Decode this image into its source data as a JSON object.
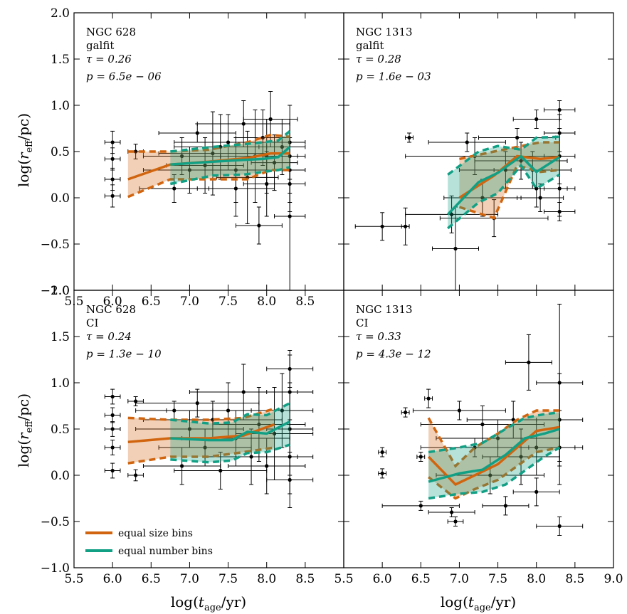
{
  "colors": {
    "size_bins": "#d1650f",
    "number_bins": "#12a085"
  },
  "legend": {
    "size_bins": "equal size bins",
    "number_bins": "equal number bins"
  },
  "axes": {
    "xlabel_parts": [
      "log(",
      "t",
      "age",
      "/yr)"
    ],
    "ylabel_parts": [
      "log(",
      "r",
      "eff",
      "/pc)"
    ]
  },
  "chart_data": [
    {
      "type": "line",
      "galaxy": "NGC 628",
      "method": "galfit",
      "tau": "τ = 0.26",
      "p": "p = 6.5e − 06",
      "xlim": [
        5.5,
        9.0
      ],
      "ylim": [
        -1.0,
        2.0
      ],
      "xticks": [
        "5.5",
        "6.0",
        "6.5",
        "7.0",
        "7.5",
        "8.0",
        "8.5"
      ],
      "yticks": [
        "−1.0",
        "−0.5",
        "0.0",
        "0.5",
        "1.0",
        "1.5",
        "2.0"
      ],
      "series": [
        {
          "name": "equal size bins",
          "x": [
            6.2,
            6.75,
            7.25,
            7.75,
            8.05,
            8.3
          ],
          "y": [
            0.2,
            0.36,
            0.39,
            0.43,
            0.48,
            0.48
          ],
          "lo": [
            0.01,
            0.2,
            0.2,
            0.2,
            0.3,
            0.3
          ],
          "hi": [
            0.5,
            0.5,
            0.52,
            0.6,
            0.68,
            0.66
          ]
        },
        {
          "name": "equal number bins",
          "x": [
            6.75,
            7.3,
            7.7,
            7.95,
            8.15,
            8.3
          ],
          "y": [
            0.36,
            0.39,
            0.41,
            0.42,
            0.44,
            0.55
          ],
          "lo": [
            0.15,
            0.24,
            0.25,
            0.28,
            0.3,
            0.33
          ],
          "hi": [
            0.5,
            0.55,
            0.58,
            0.6,
            0.62,
            0.72
          ]
        }
      ],
      "points": [
        [
          6.0,
          0.6,
          0.1,
          0.12
        ],
        [
          6.0,
          0.42,
          0.1,
          0.12
        ],
        [
          6.0,
          0.2,
          0.1,
          0.12
        ],
        [
          6.0,
          0.02,
          0.1,
          0.12
        ],
        [
          6.3,
          0.5,
          0.1,
          0.08
        ],
        [
          6.8,
          0.1,
          0.45,
          0.15
        ],
        [
          6.9,
          0.45,
          0.5,
          0.2
        ],
        [
          7.0,
          0.3,
          0.6,
          0.25
        ],
        [
          7.1,
          0.7,
          0.5,
          0.1
        ],
        [
          7.2,
          0.35,
          0.5,
          0.3
        ],
        [
          7.3,
          0.48,
          0.7,
          0.45
        ],
        [
          7.4,
          0.55,
          0.6,
          0.35
        ],
        [
          7.5,
          0.6,
          0.7,
          0.3
        ],
        [
          7.6,
          0.3,
          0.6,
          0.35
        ],
        [
          7.6,
          0.1,
          0.5,
          0.3
        ],
        [
          7.7,
          0.8,
          0.6,
          0.25
        ],
        [
          7.75,
          0.22,
          0.4,
          0.5
        ],
        [
          7.85,
          0.45,
          0.45,
          0.5
        ],
        [
          7.9,
          -0.3,
          0.3,
          0.2
        ],
        [
          7.95,
          0.65,
          0.35,
          0.3
        ],
        [
          8.0,
          0.15,
          0.3,
          0.35
        ],
        [
          8.0,
          0.45,
          0.4,
          0.4
        ],
        [
          8.05,
          0.85,
          0.35,
          0.3
        ],
        [
          8.1,
          0.38,
          0.3,
          0.3
        ],
        [
          8.2,
          0.55,
          0.3,
          0.3
        ],
        [
          8.3,
          0.3,
          0.2,
          0.35
        ],
        [
          8.3,
          0.45,
          0.2,
          0.4
        ],
        [
          8.3,
          0.6,
          0.2,
          0.4
        ],
        [
          8.3,
          0.15,
          0.2,
          0.3
        ],
        [
          8.3,
          -0.2,
          0.2,
          0.8
        ]
      ]
    },
    {
      "type": "line",
      "galaxy": "NGC 1313",
      "method": "galfit",
      "tau": "τ = 0.28",
      "p": "p = 1.6e − 03",
      "xlim": [
        5.5,
        9.0
      ],
      "ylim": [
        -1.0,
        2.0
      ],
      "xticks": [],
      "yticks": [],
      "series": [
        {
          "name": "equal size bins",
          "x": [
            7.0,
            7.45,
            7.75,
            8.05,
            8.3
          ],
          "y": [
            0.0,
            0.24,
            0.45,
            0.42,
            0.44
          ],
          "lo": [
            -0.1,
            -0.22,
            0.35,
            0.28,
            0.3
          ],
          "hi": [
            0.42,
            0.5,
            0.55,
            0.6,
            0.6
          ]
        },
        {
          "name": "equal number bins",
          "x": [
            6.85,
            7.25,
            7.5,
            7.8,
            8.0,
            8.3
          ],
          "y": [
            -0.18,
            0.17,
            0.27,
            0.45,
            0.28,
            0.44
          ],
          "lo": [
            -0.33,
            -0.05,
            0.05,
            0.35,
            0.1,
            0.25
          ],
          "hi": [
            0.25,
            0.5,
            0.56,
            0.52,
            0.65,
            0.66
          ]
        }
      ],
      "points": [
        [
          6.0,
          -0.31,
          0.35,
          0.15
        ],
        [
          6.3,
          -0.31,
          0.05,
          0.2
        ],
        [
          6.35,
          0.65,
          0.05,
          0.05
        ],
        [
          6.9,
          -0.18,
          0.6,
          0.2
        ],
        [
          6.95,
          -0.55,
          0.3,
          0.45
        ],
        [
          7.1,
          0.6,
          0.5,
          0.1
        ],
        [
          7.2,
          0.45,
          0.9,
          0.2
        ],
        [
          7.3,
          0.0,
          0.5,
          0.2
        ],
        [
          7.45,
          -0.22,
          0.7,
          0.2
        ],
        [
          7.6,
          0.3,
          0.6,
          0.2
        ],
        [
          7.75,
          0.65,
          0.5,
          0.1
        ],
        [
          7.8,
          0.4,
          0.6,
          0.2
        ],
        [
          7.95,
          0.3,
          0.5,
          0.2
        ],
        [
          8.0,
          0.1,
          0.4,
          0.2
        ],
        [
          8.0,
          0.85,
          0.3,
          0.1
        ],
        [
          8.05,
          0.0,
          0.3,
          0.15
        ],
        [
          8.3,
          0.95,
          0.2,
          0.1
        ],
        [
          8.3,
          0.7,
          0.2,
          0.2
        ],
        [
          8.3,
          0.45,
          0.2,
          0.3
        ],
        [
          8.3,
          0.1,
          0.2,
          0.3
        ],
        [
          8.3,
          -0.15,
          0.2,
          0.1
        ]
      ]
    },
    {
      "type": "line",
      "galaxy": "NGC 628",
      "method": "CI",
      "tau": "τ = 0.24",
      "p": "p = 1.3e − 10",
      "xlim": [
        5.5,
        9.0
      ],
      "ylim": [
        -1.0,
        2.0
      ],
      "xticks": [
        "5.5",
        "6.0",
        "6.5",
        "7.0",
        "7.5",
        "8.0",
        "8.5"
      ],
      "yticks": [
        "−1.0",
        "−0.5",
        "0.0",
        "0.5",
        "1.0",
        "1.5",
        "2.0"
      ],
      "series": [
        {
          "name": "equal size bins",
          "x": [
            6.2,
            6.75,
            7.25,
            7.7,
            8.1
          ],
          "y": [
            0.36,
            0.4,
            0.4,
            0.43,
            0.55
          ],
          "lo": [
            0.13,
            0.2,
            0.2,
            0.25,
            0.3
          ],
          "hi": [
            0.62,
            0.6,
            0.6,
            0.62,
            0.72
          ]
        },
        {
          "name": "equal number bins",
          "x": [
            6.75,
            7.25,
            7.55,
            7.75,
            8.0,
            8.3
          ],
          "y": [
            0.4,
            0.38,
            0.38,
            0.47,
            0.45,
            0.58
          ],
          "lo": [
            0.17,
            0.14,
            0.16,
            0.24,
            0.25,
            0.33
          ],
          "hi": [
            0.6,
            0.56,
            0.57,
            0.66,
            0.65,
            0.78
          ]
        }
      ],
      "points": [
        [
          6.0,
          0.85,
          0.1,
          0.08
        ],
        [
          6.0,
          0.65,
          0.1,
          0.08
        ],
        [
          6.0,
          0.5,
          0.1,
          0.08
        ],
        [
          6.0,
          0.3,
          0.1,
          0.08
        ],
        [
          6.0,
          0.05,
          0.1,
          0.08
        ],
        [
          6.3,
          0.8,
          0.1,
          0.05
        ],
        [
          6.3,
          0.0,
          0.1,
          0.06
        ],
        [
          6.8,
          0.7,
          0.5,
          0.1
        ],
        [
          6.9,
          0.1,
          0.5,
          0.2
        ],
        [
          7.0,
          0.5,
          0.7,
          0.2
        ],
        [
          7.1,
          0.78,
          0.8,
          0.15
        ],
        [
          7.2,
          0.3,
          0.6,
          0.2
        ],
        [
          7.3,
          0.6,
          0.9,
          0.2
        ],
        [
          7.4,
          0.05,
          0.6,
          0.2
        ],
        [
          7.5,
          0.7,
          0.8,
          0.3
        ],
        [
          7.6,
          0.4,
          0.7,
          0.3
        ],
        [
          7.7,
          0.9,
          0.7,
          0.3
        ],
        [
          7.8,
          0.2,
          0.6,
          0.3
        ],
        [
          7.9,
          0.55,
          0.6,
          0.4
        ],
        [
          8.0,
          0.1,
          0.5,
          0.3
        ],
        [
          8.1,
          0.45,
          0.5,
          0.5
        ],
        [
          8.2,
          0.7,
          0.4,
          0.4
        ],
        [
          8.3,
          1.15,
          0.3,
          0.2
        ],
        [
          8.3,
          0.9,
          0.3,
          0.4
        ],
        [
          8.3,
          0.5,
          0.3,
          0.5
        ],
        [
          8.3,
          0.2,
          0.3,
          0.4
        ],
        [
          8.3,
          -0.05,
          0.3,
          0.3
        ]
      ]
    },
    {
      "type": "line",
      "galaxy": "NGC 1313",
      "method": "CI",
      "tau": "τ = 0.33",
      "p": "p = 4.3e − 12",
      "xlim": [
        5.5,
        9.0
      ],
      "ylim": [
        -1.0,
        2.0
      ],
      "xticks": [
        "5.5",
        "6.0",
        "6.5",
        "7.0",
        "7.5",
        "8.0",
        "8.5",
        "9.0"
      ],
      "yticks": [],
      "series": [
        {
          "name": "equal size bins",
          "x": [
            6.6,
            6.95,
            7.2,
            7.5,
            7.75,
            8.0,
            8.3
          ],
          "y": [
            0.2,
            -0.1,
            0.0,
            0.12,
            0.3,
            0.48,
            0.52
          ],
          "lo": [
            -0.02,
            -0.25,
            -0.15,
            -0.05,
            0.1,
            0.25,
            0.3
          ],
          "hi": [
            0.62,
            0.1,
            0.3,
            0.45,
            0.6,
            0.7,
            0.7
          ]
        },
        {
          "name": "equal number bins",
          "x": [
            6.6,
            7.0,
            7.3,
            7.6,
            7.85,
            8.1,
            8.3
          ],
          "y": [
            -0.07,
            0.02,
            0.06,
            0.22,
            0.4,
            0.45,
            0.5
          ],
          "lo": [
            -0.25,
            -0.2,
            -0.18,
            -0.1,
            0.05,
            0.2,
            0.3
          ],
          "hi": [
            0.25,
            0.3,
            0.35,
            0.5,
            0.62,
            0.66,
            0.68
          ]
        }
      ],
      "points": [
        [
          6.0,
          0.25,
          0.05,
          0.05
        ],
        [
          6.0,
          0.02,
          0.05,
          0.05
        ],
        [
          6.3,
          0.68,
          0.05,
          0.05
        ],
        [
          6.5,
          0.2,
          0.05,
          0.05
        ],
        [
          6.6,
          0.83,
          0.05,
          0.1
        ],
        [
          6.5,
          -0.33,
          0.5,
          0.05
        ],
        [
          6.9,
          -0.4,
          0.3,
          0.05
        ],
        [
          6.95,
          -0.5,
          0.1,
          0.05
        ],
        [
          7.0,
          0.7,
          0.6,
          0.1
        ],
        [
          7.2,
          0.3,
          0.7,
          0.1
        ],
        [
          7.3,
          0.55,
          0.8,
          0.2
        ],
        [
          7.4,
          0.0,
          0.7,
          0.2
        ],
        [
          7.5,
          0.4,
          0.8,
          0.2
        ],
        [
          7.6,
          -0.33,
          0.3,
          0.1
        ],
        [
          7.7,
          0.6,
          0.6,
          0.2
        ],
        [
          7.8,
          0.2,
          0.5,
          0.3
        ],
        [
          7.9,
          1.22,
          0.3,
          0.3
        ],
        [
          8.0,
          0.3,
          0.5,
          0.3
        ],
        [
          8.0,
          -0.18,
          0.3,
          0.15
        ],
        [
          8.3,
          1.0,
          0.3,
          0.85
        ],
        [
          8.3,
          0.6,
          0.3,
          0.5
        ],
        [
          8.3,
          0.3,
          0.3,
          0.4
        ],
        [
          8.3,
          -0.55,
          0.3,
          0.1
        ]
      ]
    }
  ]
}
